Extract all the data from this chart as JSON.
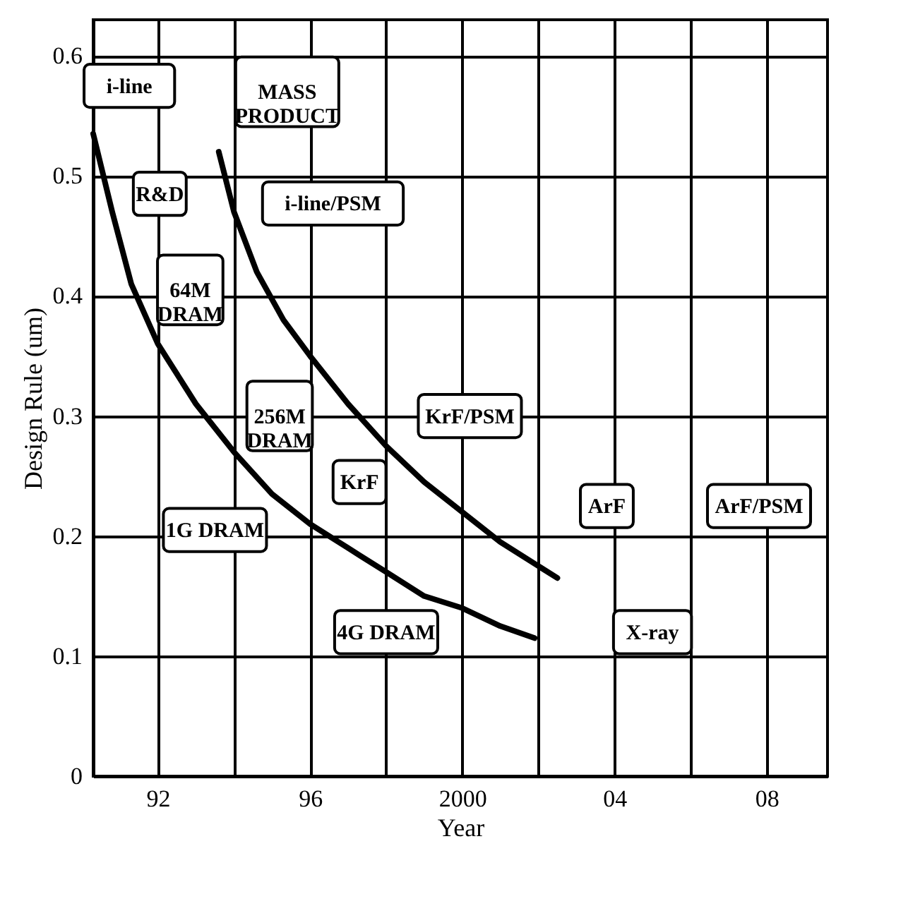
{
  "chart_data": {
    "type": "line",
    "xlabel": "Year",
    "ylabel": "Design Rule (um)",
    "xlim": [
      1990.3,
      2009.6
    ],
    "ylim": [
      0,
      0.63
    ],
    "xticks": [
      {
        "value": 1992,
        "label": "92"
      },
      {
        "value": 1994,
        "label": null
      },
      {
        "value": 1996,
        "label": "96"
      },
      {
        "value": 1998,
        "label": null
      },
      2000,
      {
        "value": 2002,
        "label": null
      },
      {
        "value": 2004,
        "label": "04"
      },
      {
        "value": 2006,
        "label": null
      },
      {
        "value": 2008,
        "label": "08"
      }
    ],
    "yticks": [
      0,
      0.1,
      0.2,
      0.3,
      0.4,
      0.5,
      0.6
    ],
    "grid": true,
    "marker": "none",
    "line_style": "solid",
    "series": [
      {
        "color": "#000000",
        "x": [
          1990.3,
          1990.8,
          1991.3,
          1992.0,
          1993.0,
          1994.0,
          1995.0,
          1996.0,
          1997.0,
          1998.0,
          1999.0,
          2000.0,
          2001.0,
          2001.9
        ],
        "values": [
          0.535,
          0.47,
          0.41,
          0.36,
          0.31,
          0.27,
          0.235,
          0.21,
          0.19,
          0.17,
          0.15,
          0.14,
          0.125,
          0.115
        ]
      },
      {
        "color": "#000000",
        "x": [
          1993.6,
          1994.0,
          1994.6,
          1995.3,
          1996.0,
          1997.0,
          1998.0,
          1999.0,
          2000.0,
          2001.0,
          2002.0,
          2002.5
        ],
        "values": [
          0.52,
          0.47,
          0.42,
          0.38,
          0.35,
          0.31,
          0.275,
          0.245,
          0.22,
          0.195,
          0.175,
          0.165
        ]
      }
    ],
    "annotations": [
      "i-line",
      "MASS\nPRODUCT",
      "R&D",
      "i-line/PSM",
      "64M\nDRAM",
      "256M\nDRAM",
      "KrF",
      "KrF/PSM",
      "1G DRAM",
      "ArF",
      "ArF/PSM",
      "4G DRAM",
      "X-ray"
    ]
  }
}
